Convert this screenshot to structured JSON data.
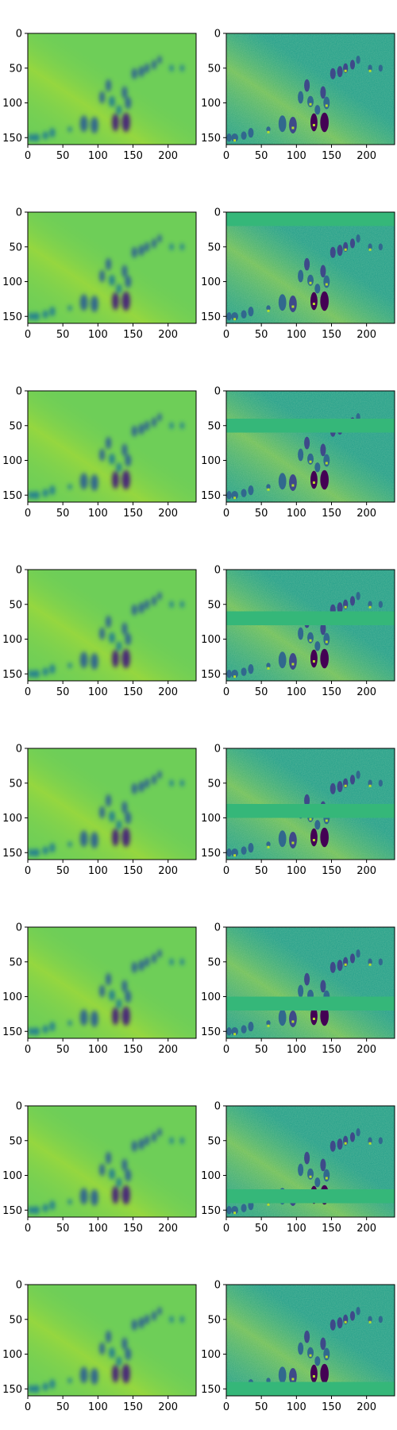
{
  "figure": {
    "layout": {
      "rows": 8,
      "cols": 2
    },
    "colormap": "viridis",
    "background": "#ffffff"
  },
  "chart_data": {
    "type": "heatmap",
    "grid": {
      "rows": 8,
      "cols": 2
    },
    "xlim": [
      0,
      240
    ],
    "ylim": [
      160,
      0
    ],
    "xticks": [
      0,
      50,
      100,
      150,
      200
    ],
    "yticks": [
      0,
      50,
      100,
      150
    ],
    "xtick_labels": [
      "0",
      "50",
      "100",
      "150",
      "200"
    ],
    "ytick_labels": [
      "0",
      "50",
      "100",
      "150"
    ],
    "colormap": "viridis",
    "grid_lines": false,
    "panels": [
      {
        "row": 1,
        "col": 1,
        "style": "smooth"
      },
      {
        "row": 1,
        "col": 2,
        "style": "sharp",
        "band": null
      },
      {
        "row": 2,
        "col": 1,
        "style": "smooth"
      },
      {
        "row": 2,
        "col": 2,
        "style": "sharp",
        "band": [
          0,
          20
        ]
      },
      {
        "row": 3,
        "col": 1,
        "style": "smooth"
      },
      {
        "row": 3,
        "col": 2,
        "style": "sharp",
        "band": [
          40,
          60
        ]
      },
      {
        "row": 4,
        "col": 1,
        "style": "smooth"
      },
      {
        "row": 4,
        "col": 2,
        "style": "sharp",
        "band": [
          60,
          80
        ]
      },
      {
        "row": 5,
        "col": 1,
        "style": "smooth"
      },
      {
        "row": 5,
        "col": 2,
        "style": "sharp",
        "band": [
          80,
          100
        ]
      },
      {
        "row": 6,
        "col": 1,
        "style": "smooth"
      },
      {
        "row": 6,
        "col": 2,
        "style": "sharp",
        "band": [
          100,
          120
        ]
      },
      {
        "row": 7,
        "col": 1,
        "style": "smooth"
      },
      {
        "row": 7,
        "col": 2,
        "style": "sharp",
        "band": [
          120,
          140
        ]
      },
      {
        "row": 8,
        "col": 1,
        "style": "smooth"
      },
      {
        "row": 8,
        "col": 2,
        "style": "sharp",
        "band": [
          140,
          160
        ]
      }
    ],
    "features": [
      {
        "x": 125,
        "y": 128,
        "w": 10,
        "h": 26,
        "v": 0.0
      },
      {
        "x": 140,
        "y": 128,
        "w": 12,
        "h": 28,
        "v": 0.05
      },
      {
        "x": 80,
        "y": 130,
        "w": 11,
        "h": 24,
        "v": 0.3
      },
      {
        "x": 95,
        "y": 132,
        "w": 11,
        "h": 24,
        "v": 0.28
      },
      {
        "x": 35,
        "y": 143,
        "w": 8,
        "h": 14,
        "v": 0.35
      },
      {
        "x": 25,
        "y": 147,
        "w": 8,
        "h": 12,
        "v": 0.35
      },
      {
        "x": 12,
        "y": 150,
        "w": 10,
        "h": 12,
        "v": 0.32
      },
      {
        "x": 4,
        "y": 150,
        "w": 7,
        "h": 12,
        "v": 0.35
      },
      {
        "x": 106,
        "y": 92,
        "w": 8,
        "h": 18,
        "v": 0.3
      },
      {
        "x": 120,
        "y": 98,
        "w": 9,
        "h": 16,
        "v": 0.32
      },
      {
        "x": 138,
        "y": 85,
        "w": 8,
        "h": 18,
        "v": 0.25
      },
      {
        "x": 115,
        "y": 75,
        "w": 8,
        "h": 18,
        "v": 0.2
      },
      {
        "x": 143,
        "y": 100,
        "w": 9,
        "h": 18,
        "v": 0.3
      },
      {
        "x": 152,
        "y": 58,
        "w": 8,
        "h": 16,
        "v": 0.28
      },
      {
        "x": 162,
        "y": 55,
        "w": 8,
        "h": 16,
        "v": 0.25
      },
      {
        "x": 170,
        "y": 50,
        "w": 7,
        "h": 14,
        "v": 0.25
      },
      {
        "x": 180,
        "y": 45,
        "w": 7,
        "h": 14,
        "v": 0.28
      },
      {
        "x": 188,
        "y": 38,
        "w": 6,
        "h": 12,
        "v": 0.3
      },
      {
        "x": 205,
        "y": 50,
        "w": 6,
        "h": 10,
        "v": 0.32
      },
      {
        "x": 220,
        "y": 50,
        "w": 6,
        "h": 10,
        "v": 0.35
      },
      {
        "x": 130,
        "y": 110,
        "w": 8,
        "h": 14,
        "v": 0.35
      },
      {
        "x": 60,
        "y": 138,
        "w": 6,
        "h": 8,
        "v": 0.4
      }
    ]
  }
}
